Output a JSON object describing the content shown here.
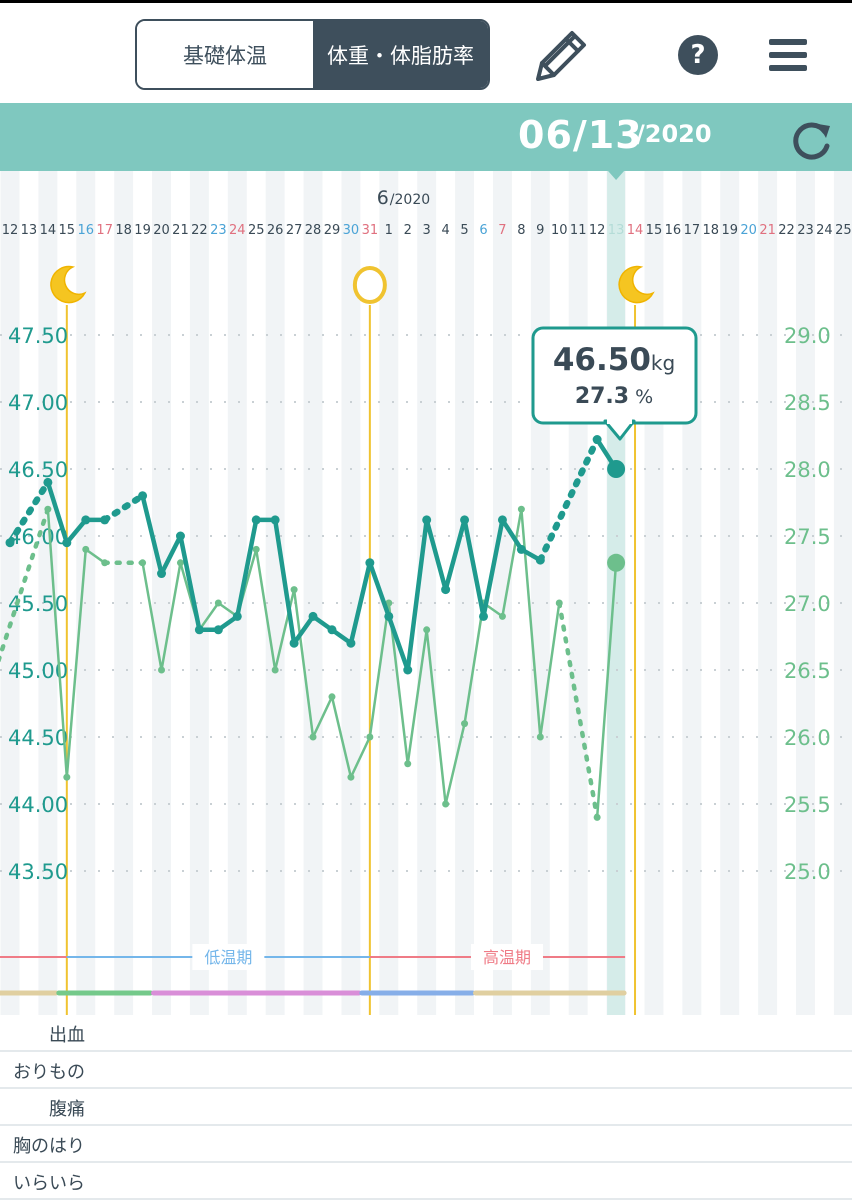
{
  "header": {
    "tab_bbt": "基礎体温",
    "tab_weight": "体重・体脂肪率",
    "icons": [
      "pencil-icon",
      "help-icon",
      "menu-icon",
      "refresh-icon"
    ],
    "help_glyph": "?"
  },
  "date_bar": {
    "date": "06/13",
    "year": "/2020"
  },
  "month_label": {
    "month": "6",
    "year": "/2020"
  },
  "tooltip": {
    "weight": "46.50",
    "weight_unit": "kg",
    "fat": "27.3",
    "fat_unit": "%"
  },
  "phases": {
    "low": "低温期",
    "high": "高温期"
  },
  "symptoms": [
    "出血",
    "おりもの",
    "腹痛",
    "胸のはり",
    "いらいら"
  ],
  "colors": {
    "teal_dark": "#1f9a8e",
    "green_light": "#6dbf8c",
    "header_bar": "#7fc8bf",
    "selected_column": "#d5ece9",
    "cycle_line": "#f0c330",
    "low_phase": "#74b6ea",
    "high_phase": "#ef7b86",
    "sunday": "#e0707f",
    "saturday": "#4aa3d6"
  },
  "chart_data": {
    "type": "line",
    "x_dates": [
      "5/12",
      "5/13",
      "5/14",
      "5/15",
      "5/16",
      "5/17",
      "5/18",
      "5/19",
      "5/20",
      "5/21",
      "5/22",
      "5/23",
      "5/24",
      "5/25",
      "5/26",
      "5/27",
      "5/28",
      "5/29",
      "5/30",
      "5/31",
      "6/1",
      "6/2",
      "6/3",
      "6/4",
      "6/5",
      "6/6",
      "6/7",
      "6/8",
      "6/9",
      "6/10",
      "6/11",
      "6/12",
      "6/13",
      "6/14",
      "6/15",
      "6/16",
      "6/17",
      "6/18",
      "6/19",
      "6/20",
      "6/21",
      "6/22",
      "6/23",
      "6/24",
      "6/25"
    ],
    "x_tick_labels": [
      "12",
      "13",
      "14",
      "15",
      "16",
      "17",
      "18",
      "19",
      "20",
      "21",
      "22",
      "23",
      "24",
      "25",
      "26",
      "27",
      "28",
      "29",
      "30",
      "31",
      "1",
      "2",
      "3",
      "4",
      "5",
      "6",
      "7",
      "8",
      "9",
      "10",
      "11",
      "12",
      "13",
      "14",
      "15",
      "16",
      "17",
      "18",
      "19",
      "20",
      "21",
      "22",
      "23",
      "24",
      "25"
    ],
    "y_left": {
      "label": "kg",
      "ticks": [
        "47.50",
        "47.00",
        "46.50",
        "46.00",
        "45.50",
        "45.00",
        "44.50",
        "44.00",
        "43.50"
      ],
      "range": [
        43.5,
        47.5
      ]
    },
    "y_right": {
      "label": "%",
      "ticks": [
        "29.0",
        "28.5",
        "28.0",
        "27.5",
        "27.0",
        "26.5",
        "26.0",
        "25.5",
        "25.0"
      ],
      "range": [
        25.0,
        29.0
      ]
    },
    "series": [
      {
        "name": "体重",
        "unit": "kg",
        "points": [
          {
            "date": "5/12",
            "value": 45.95
          },
          {
            "date": "5/14",
            "value": 46.4
          },
          {
            "date": "5/15",
            "value": 45.95
          },
          {
            "date": "5/16",
            "value": 46.12
          },
          {
            "date": "5/17",
            "value": 46.12
          },
          {
            "date": "5/19",
            "value": 46.3
          },
          {
            "date": "5/20",
            "value": 45.72
          },
          {
            "date": "5/21",
            "value": 46.0
          },
          {
            "date": "5/22",
            "value": 45.3
          },
          {
            "date": "5/23",
            "value": 45.3
          },
          {
            "date": "5/24",
            "value": 45.4
          },
          {
            "date": "5/25",
            "value": 46.12
          },
          {
            "date": "5/26",
            "value": 46.12
          },
          {
            "date": "5/27",
            "value": 45.2
          },
          {
            "date": "5/28",
            "value": 45.4
          },
          {
            "date": "5/29",
            "value": 45.3
          },
          {
            "date": "5/30",
            "value": 45.2
          },
          {
            "date": "5/31",
            "value": 45.8
          },
          {
            "date": "6/1",
            "value": 45.4
          },
          {
            "date": "6/2",
            "value": 45.0
          },
          {
            "date": "6/3",
            "value": 46.12
          },
          {
            "date": "6/4",
            "value": 45.6
          },
          {
            "date": "6/5",
            "value": 46.12
          },
          {
            "date": "6/6",
            "value": 45.4
          },
          {
            "date": "6/7",
            "value": 46.12
          },
          {
            "date": "6/8",
            "value": 45.9
          },
          {
            "date": "6/9",
            "value": 45.82
          },
          {
            "date": "6/12",
            "value": 46.72
          },
          {
            "date": "6/13",
            "value": 46.5
          }
        ]
      },
      {
        "name": "体脂肪率",
        "unit": "%",
        "points": [
          {
            "date": "5/11",
            "value": 26.4
          },
          {
            "date": "5/14",
            "value": 27.7
          },
          {
            "date": "5/15",
            "value": 25.7
          },
          {
            "date": "5/16",
            "value": 27.4
          },
          {
            "date": "5/17",
            "value": 27.3
          },
          {
            "date": "5/19",
            "value": 27.3
          },
          {
            "date": "5/20",
            "value": 26.5
          },
          {
            "date": "5/21",
            "value": 27.3
          },
          {
            "date": "5/22",
            "value": 26.8
          },
          {
            "date": "5/23",
            "value": 27.0
          },
          {
            "date": "5/24",
            "value": 26.9
          },
          {
            "date": "5/25",
            "value": 27.4
          },
          {
            "date": "5/26",
            "value": 26.5
          },
          {
            "date": "5/27",
            "value": 27.1
          },
          {
            "date": "5/28",
            "value": 26.0
          },
          {
            "date": "5/29",
            "value": 26.3
          },
          {
            "date": "5/30",
            "value": 25.7
          },
          {
            "date": "5/31",
            "value": 26.0
          },
          {
            "date": "6/1",
            "value": 27.0
          },
          {
            "date": "6/2",
            "value": 25.8
          },
          {
            "date": "6/3",
            "value": 26.8
          },
          {
            "date": "6/4",
            "value": 25.5
          },
          {
            "date": "6/5",
            "value": 26.1
          },
          {
            "date": "6/6",
            "value": 27.0
          },
          {
            "date": "6/7",
            "value": 26.9
          },
          {
            "date": "6/8",
            "value": 27.7
          },
          {
            "date": "6/9",
            "value": 26.0
          },
          {
            "date": "6/10",
            "value": 27.0
          },
          {
            "date": "6/12",
            "value": 25.4
          },
          {
            "date": "6/13",
            "value": 27.3
          }
        ]
      }
    ],
    "moon_dates": [
      "5/15",
      "6/14"
    ],
    "ovulation_date": "5/31",
    "selected_date": "6/13",
    "phase_split_date": "5/31",
    "grid": true
  }
}
